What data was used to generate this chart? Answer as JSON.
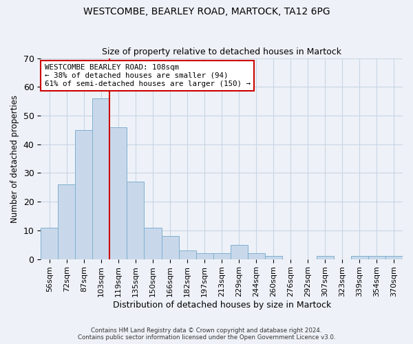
{
  "title": "WESTCOMBE, BEARLEY ROAD, MARTOCK, TA12 6PG",
  "subtitle": "Size of property relative to detached houses in Martock",
  "xlabel": "Distribution of detached houses by size in Martock",
  "ylabel": "Number of detached properties",
  "bar_labels": [
    "56sqm",
    "72sqm",
    "87sqm",
    "103sqm",
    "119sqm",
    "135sqm",
    "150sqm",
    "166sqm",
    "182sqm",
    "197sqm",
    "213sqm",
    "229sqm",
    "244sqm",
    "260sqm",
    "276sqm",
    "292sqm",
    "307sqm",
    "323sqm",
    "339sqm",
    "354sqm",
    "370sqm"
  ],
  "bar_values": [
    11,
    26,
    45,
    56,
    46,
    27,
    11,
    8,
    3,
    2,
    2,
    5,
    2,
    1,
    0,
    0,
    1,
    0,
    1,
    1,
    1
  ],
  "bar_color": "#c8d8ea",
  "bar_edge_color": "#7fafd0",
  "vline_after_index": 3,
  "vline_color": "#cc0000",
  "ylim": [
    0,
    70
  ],
  "yticks": [
    0,
    10,
    20,
    30,
    40,
    50,
    60,
    70
  ],
  "annotation_text": "WESTCOMBE BEARLEY ROAD: 108sqm\n← 38% of detached houses are smaller (94)\n61% of semi-detached houses are larger (150) →",
  "annotation_box_color": "#ffffff",
  "annotation_box_edge": "#cc0000",
  "grid_color": "#c8d4e4",
  "bg_color": "#eef2f8",
  "footer_line1": "Contains HM Land Registry data © Crown copyright and database right 2024.",
  "footer_line2": "Contains public sector information licensed under the Open Government Licence v3.0."
}
